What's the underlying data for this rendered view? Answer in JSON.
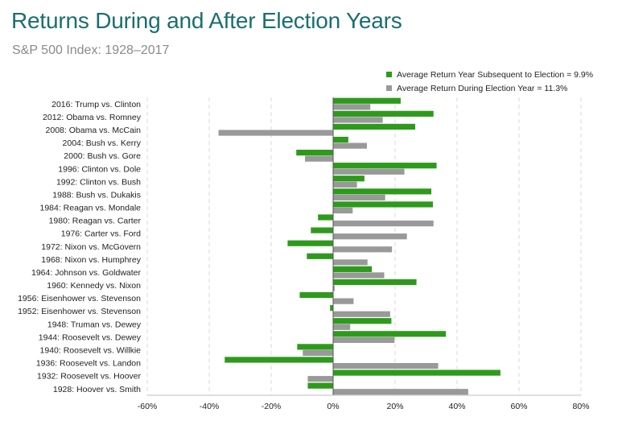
{
  "chart_data": {
    "type": "bar",
    "orientation": "horizontal",
    "title": "Returns During and After Election Years",
    "subtitle": "S&P 500 Index: 1928–2017",
    "categories": [
      "2016: Trump vs. Clinton",
      "2012: Obama vs. Romney",
      "2008: Obama vs. McCain",
      "2004: Bush vs. Kerry",
      "2000: Bush vs. Gore",
      "1996: Clinton vs. Dole",
      "1992: Clinton vs. Bush",
      "1988: Bush vs. Dukakis",
      "1984: Reagan vs. Mondale",
      "1980: Reagan vs. Carter",
      "1976: Carter vs. Ford",
      "1972: Nixon vs. McGovern",
      "1968: Nixon vs. Humphrey",
      "1964: Johnson vs. Goldwater",
      "1960: Kennedy vs. Nixon",
      "1956: Eisenhower vs. Stevenson",
      "1952: Eisenhower vs. Stevenson",
      "1948: Truman vs. Dewey",
      "1944: Roosevelt vs. Dewey",
      "1940: Roosevelt vs. Willkie",
      "1936: Roosevelt vs. Landon",
      "1932: Roosevelt vs. Hoover",
      "1928: Hoover vs. Smith"
    ],
    "series": [
      {
        "name": "Average Return Year Subsequent to Election = 9.9%",
        "color": "#2e9a1c",
        "values": [
          21.8,
          32.4,
          26.5,
          4.9,
          -11.9,
          33.4,
          10.1,
          31.7,
          32.2,
          -4.9,
          -7.2,
          -14.7,
          -8.5,
          12.5,
          26.9,
          -10.8,
          -1.0,
          18.8,
          36.4,
          -11.6,
          -35.0,
          54.0,
          -8.2
        ]
      },
      {
        "name": "Average Return During Election Year = 11.3%",
        "color": "#999999",
        "values": [
          12.0,
          16.0,
          -37.0,
          10.9,
          -9.1,
          23.0,
          7.7,
          16.8,
          6.3,
          32.4,
          23.8,
          19.0,
          11.1,
          16.5,
          0.5,
          6.6,
          18.4,
          5.5,
          19.8,
          -9.8,
          33.9,
          -8.2,
          43.6
        ]
      }
    ],
    "xlim": [
      -60,
      80
    ],
    "x_ticks": [
      "-60%",
      "-40%",
      "-20%",
      "0%",
      "20%",
      "40%",
      "60%",
      "80%"
    ],
    "x_tick_values": [
      -60,
      -40,
      -20,
      0,
      20,
      40,
      60,
      80
    ],
    "grid": "vertical",
    "legend_position": "top-right"
  }
}
